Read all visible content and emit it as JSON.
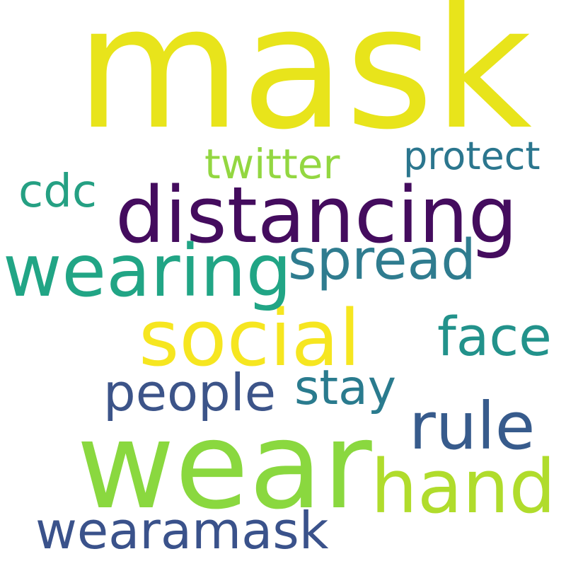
{
  "wordcloud": {
    "words": [
      {
        "text": "mask",
        "color": "#e8e41b"
      },
      {
        "text": "wear",
        "color": "#8ad83f"
      },
      {
        "text": "distancing",
        "color": "#440c5e"
      },
      {
        "text": "social",
        "color": "#f6e620"
      },
      {
        "text": "wearing",
        "color": "#21a585"
      },
      {
        "text": "hand",
        "color": "#b0dc2c"
      },
      {
        "text": "rule",
        "color": "#375b8c"
      },
      {
        "text": "spread",
        "color": "#2f7c8f"
      },
      {
        "text": "face",
        "color": "#22928b"
      },
      {
        "text": "people",
        "color": "#3c5489"
      },
      {
        "text": "stay",
        "color": "#2a7b8e"
      },
      {
        "text": "wearamask",
        "color": "#3a528b"
      },
      {
        "text": "twitter",
        "color": "#93d741"
      },
      {
        "text": "cdc",
        "color": "#25a083"
      },
      {
        "text": "protect",
        "color": "#2b768e"
      }
    ]
  }
}
